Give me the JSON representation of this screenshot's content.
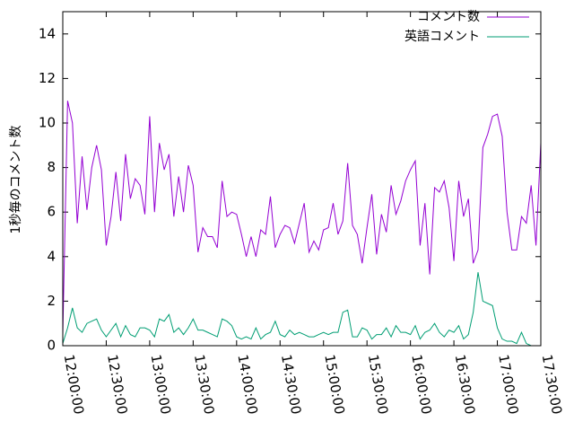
{
  "chart_data": {
    "type": "line",
    "ylabel": "1秒毎のコメント数",
    "x": [
      "12:00:00",
      "12:03:20",
      "12:06:40",
      "12:10:00",
      "12:13:20",
      "12:16:40",
      "12:20:00",
      "12:23:20",
      "12:26:40",
      "12:30:00",
      "12:33:20",
      "12:36:40",
      "12:40:00",
      "12:43:20",
      "12:46:40",
      "12:50:00",
      "12:53:20",
      "12:56:40",
      "13:00:00",
      "13:03:20",
      "13:06:40",
      "13:10:00",
      "13:13:20",
      "13:16:40",
      "13:20:00",
      "13:23:20",
      "13:26:40",
      "13:30:00",
      "13:33:20",
      "13:36:40",
      "13:40:00",
      "13:43:20",
      "13:46:40",
      "13:50:00",
      "13:53:20",
      "13:56:40",
      "14:00:00",
      "14:03:20",
      "14:06:40",
      "14:10:00",
      "14:13:20",
      "14:16:40",
      "14:20:00",
      "14:23:20",
      "14:26:40",
      "14:30:00",
      "14:33:20",
      "14:36:40",
      "14:40:00",
      "14:43:20",
      "14:46:40",
      "14:50:00",
      "14:53:20",
      "14:56:40",
      "15:00:00",
      "15:03:20",
      "15:06:40",
      "15:10:00",
      "15:13:20",
      "15:16:40",
      "15:20:00",
      "15:23:20",
      "15:26:40",
      "15:30:00",
      "15:33:20",
      "15:36:40",
      "15:40:00",
      "15:43:20",
      "15:46:40",
      "15:50:00",
      "15:53:20",
      "15:56:40",
      "16:00:00",
      "16:03:20",
      "16:06:40",
      "16:10:00",
      "16:13:20",
      "16:16:40",
      "16:20:00",
      "16:23:20",
      "16:26:40",
      "16:30:00",
      "16:33:20",
      "16:36:40",
      "16:40:00",
      "16:43:20",
      "16:46:40",
      "16:50:00",
      "16:53:20",
      "16:56:40",
      "17:00:00",
      "17:03:20",
      "17:06:40",
      "17:10:00",
      "17:13:20",
      "17:16:40",
      "17:20:00",
      "17:23:20",
      "17:26:40",
      "17:30:00"
    ],
    "series": [
      {
        "name": "コメント数",
        "color": "#9400d3",
        "values": [
          0.5,
          11.0,
          10.0,
          5.5,
          8.5,
          6.1,
          8.0,
          9.0,
          7.9,
          4.5,
          5.8,
          7.8,
          5.6,
          8.6,
          6.6,
          7.5,
          7.2,
          5.9,
          10.3,
          6.0,
          9.1,
          7.9,
          8.6,
          5.8,
          7.6,
          6.0,
          8.1,
          7.2,
          4.2,
          5.3,
          4.9,
          4.9,
          4.4,
          7.4,
          5.8,
          6.0,
          5.9,
          5.0,
          4.0,
          4.9,
          4.0,
          5.2,
          5.0,
          6.7,
          4.4,
          5.0,
          5.4,
          5.3,
          4.6,
          5.5,
          6.4,
          4.2,
          4.7,
          4.3,
          5.2,
          5.3,
          6.4,
          5.0,
          5.6,
          8.2,
          5.4,
          5.0,
          3.7,
          5.3,
          6.8,
          4.1,
          5.9,
          5.1,
          7.2,
          5.9,
          6.5,
          7.4,
          7.9,
          8.3,
          4.5,
          6.4,
          3.2,
          7.1,
          6.9,
          7.4,
          6.2,
          3.8,
          7.4,
          5.8,
          6.6,
          3.7,
          4.3,
          8.9,
          9.5,
          10.3,
          10.4,
          9.4,
          6.0,
          4.3,
          4.3,
          5.8,
          5.5,
          7.2,
          4.5,
          9.1
        ]
      },
      {
        "name": "英語コメント",
        "color": "#009e73",
        "values": [
          0.1,
          0.8,
          1.7,
          0.8,
          0.6,
          1.0,
          1.1,
          1.2,
          0.7,
          0.4,
          0.7,
          1.0,
          0.4,
          0.9,
          0.5,
          0.4,
          0.8,
          0.8,
          0.7,
          0.4,
          1.2,
          1.1,
          1.4,
          0.6,
          0.8,
          0.5,
          0.8,
          1.2,
          0.7,
          0.7,
          0.6,
          0.5,
          0.4,
          1.2,
          1.1,
          0.9,
          0.4,
          0.3,
          0.4,
          0.3,
          0.8,
          0.3,
          0.5,
          0.6,
          1.1,
          0.5,
          0.4,
          0.7,
          0.5,
          0.6,
          0.5,
          0.4,
          0.4,
          0.5,
          0.6,
          0.5,
          0.6,
          0.6,
          1.5,
          1.6,
          0.4,
          0.4,
          0.8,
          0.7,
          0.3,
          0.5,
          0.5,
          0.8,
          0.4,
          0.9,
          0.6,
          0.6,
          0.5,
          0.9,
          0.3,
          0.6,
          0.7,
          1.0,
          0.6,
          0.4,
          0.7,
          0.6,
          0.9,
          0.3,
          0.5,
          1.5,
          3.3,
          2.0,
          1.9,
          1.8,
          0.8,
          0.3,
          0.2,
          0.2,
          0.1,
          0.6,
          0.1,
          0.0,
          0.0,
          0.0
        ]
      }
    ],
    "xlim": [
      "12:00:00",
      "17:30:00"
    ],
    "xticks": [
      "12:00:00",
      "12:30:00",
      "13:00:00",
      "13:30:00",
      "14:00:00",
      "14:30:00",
      "15:00:00",
      "15:30:00",
      "16:00:00",
      "16:30:00",
      "17:00:00",
      "17:30:00"
    ],
    "ylim": [
      0,
      15
    ],
    "yticks": [
      0,
      2,
      4,
      6,
      8,
      10,
      12,
      14
    ],
    "legend": "top-right"
  }
}
